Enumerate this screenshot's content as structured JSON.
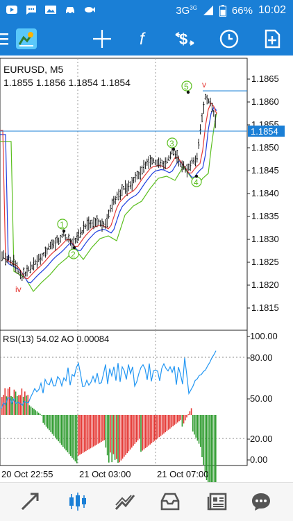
{
  "status_bar": {
    "network": "3G",
    "network_sup": "3G",
    "battery": "66%",
    "time": "10:02"
  },
  "toolbar": {
    "icons": [
      "menu-icon",
      "mt-logo-icon",
      "crosshair-icon",
      "function-icon",
      "symbol-dollar-icon",
      "clock-icon",
      "add-icon"
    ]
  },
  "chart": {
    "symbol_header": "EURUSD, M5",
    "ohlc": "1.1855 1.1856 1.1854 1.1854",
    "current_price_label": "1.1854",
    "price_axis": [
      "1.1865",
      "1.1860",
      "1.1855",
      "1.1850",
      "1.1845",
      "1.1840",
      "1.1835",
      "1.1830",
      "1.1825",
      "1.1820",
      "1.1815"
    ],
    "wave_labels": {
      "w1": "1",
      "w2": "2",
      "w3": "3",
      "w4": "4",
      "w5": "5",
      "iv": "iv",
      "v": "v"
    },
    "indicator_header": "RSI(13) 54.02 AO 0.00084",
    "indicator_axis": [
      "100.00",
      "80.00",
      "50.00",
      "20.00",
      "0.00"
    ],
    "time_axis": [
      "20 Oct 22:55",
      "21 Oct 03:00",
      "21 Oct 07:00"
    ],
    "colors": {
      "bull_bar": "#2e9b2e",
      "bear_bar": "#e53935",
      "rsi_line": "#2196f3",
      "ma_red": "#e53935",
      "ma_blue": "#1e3ee0",
      "ma_green": "#5bbf1f",
      "wave_label": "#5bbf1f",
      "accent": "#1a7fd6"
    }
  },
  "bottom_nav": {
    "icons": [
      "quotes-icon",
      "chart-icon",
      "trade-icon",
      "history-icon",
      "news-icon",
      "messages-icon"
    ]
  }
}
